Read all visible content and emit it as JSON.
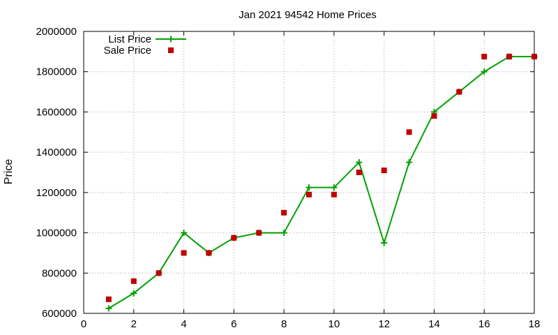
{
  "chart_data": {
    "type": "line",
    "title": "Jan 2021 94542 Home Prices",
    "xlabel": "",
    "ylabel": "Price",
    "xlim": [
      0,
      18
    ],
    "ylim": [
      600000,
      2000000
    ],
    "x_ticks": [
      0,
      2,
      4,
      6,
      8,
      10,
      12,
      14,
      16,
      18
    ],
    "y_ticks": [
      600000,
      800000,
      1000000,
      1200000,
      1400000,
      1600000,
      1800000,
      2000000
    ],
    "grid": true,
    "legend_position": "top-left",
    "x": [
      1,
      2,
      3,
      4,
      5,
      6,
      7,
      8,
      9,
      10,
      11,
      12,
      13,
      14,
      15,
      16,
      17,
      18
    ],
    "series": [
      {
        "name": "List Price",
        "style": "line+plus",
        "color": "#00a000",
        "values": [
          625000,
          700000,
          800000,
          1000000,
          900000,
          975000,
          1000000,
          1000000,
          1225000,
          1225000,
          1350000,
          950000,
          1350000,
          1600000,
          1700000,
          1800000,
          1875000,
          1875000
        ]
      },
      {
        "name": "Sale Price",
        "style": "square",
        "color": "#c00000",
        "values": [
          670000,
          760000,
          800000,
          900000,
          900000,
          975000,
          1000000,
          1100000,
          1190000,
          1190000,
          1300000,
          1310000,
          1500000,
          1580000,
          1700000,
          1875000,
          1875000,
          1875000
        ]
      }
    ]
  }
}
